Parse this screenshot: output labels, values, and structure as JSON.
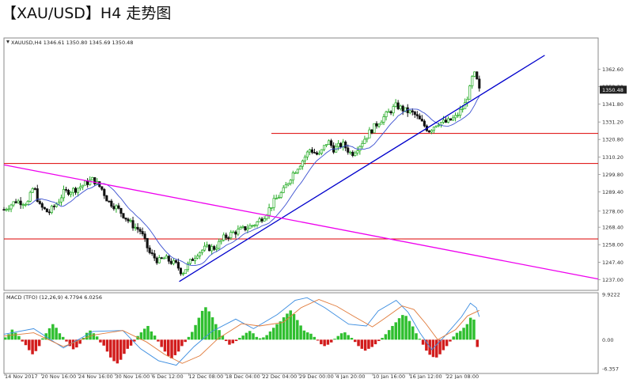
{
  "title": "【XAU/USD】H4 走势图",
  "chart_data": {
    "type": "candlestick",
    "main": {
      "header": "XAUUSD,H4  1346.61 1350.80 1345.69 1350.48",
      "last_price_label": "1350.48",
      "y_ticks": [
        "1362.60",
        "1352.30",
        "1341.80",
        "1331.20",
        "1320.80",
        "1310.20",
        "1299.80",
        "1289.40",
        "1278.00",
        "1268.40",
        "1258.00",
        "1247.40",
        "1237.00"
      ],
      "ylim": [
        1234,
        1370
      ],
      "horizontal_levels": [
        1324.4,
        1306.4,
        1261.4
      ],
      "trendlines": [
        {
          "color": "#0000cc",
          "from": [
            0.295,
            1236
          ],
          "to": [
            0.91,
            1371
          ]
        },
        {
          "color": "#ee00ee",
          "from": [
            0.0,
            1305.6
          ],
          "to": [
            1.0,
            1237.5
          ]
        }
      ],
      "close_path": [
        [
          0.0,
          1279
        ],
        [
          0.02,
          1284
        ],
        [
          0.04,
          1283
        ],
        [
          0.05,
          1293
        ],
        [
          0.06,
          1281
        ],
        [
          0.075,
          1277
        ],
        [
          0.09,
          1283
        ],
        [
          0.1,
          1289
        ],
        [
          0.12,
          1291
        ],
        [
          0.14,
          1295
        ],
        [
          0.15,
          1297
        ],
        [
          0.165,
          1291
        ],
        [
          0.175,
          1284
        ],
        [
          0.19,
          1280
        ],
        [
          0.2,
          1276
        ],
        [
          0.215,
          1270
        ],
        [
          0.23,
          1266
        ],
        [
          0.245,
          1253
        ],
        [
          0.26,
          1248
        ],
        [
          0.27,
          1250
        ],
        [
          0.28,
          1248
        ],
        [
          0.29,
          1246
        ],
        [
          0.3,
          1241
        ],
        [
          0.31,
          1246
        ],
        [
          0.325,
          1253
        ],
        [
          0.34,
          1256
        ],
        [
          0.355,
          1256
        ],
        [
          0.37,
          1262
        ],
        [
          0.385,
          1265
        ],
        [
          0.4,
          1267
        ],
        [
          0.415,
          1269
        ],
        [
          0.425,
          1271
        ],
        [
          0.44,
          1276
        ],
        [
          0.455,
          1284
        ],
        [
          0.47,
          1290
        ],
        [
          0.485,
          1300
        ],
        [
          0.5,
          1307
        ],
        [
          0.515,
          1315
        ],
        [
          0.53,
          1311
        ],
        [
          0.545,
          1320
        ],
        [
          0.555,
          1315
        ],
        [
          0.57,
          1318
        ],
        [
          0.585,
          1312
        ],
        [
          0.6,
          1318
        ],
        [
          0.615,
          1325
        ],
        [
          0.63,
          1331
        ],
        [
          0.645,
          1336
        ],
        [
          0.66,
          1341
        ],
        [
          0.675,
          1338
        ],
        [
          0.69,
          1336
        ],
        [
          0.7,
          1332
        ],
        [
          0.715,
          1326
        ],
        [
          0.73,
          1331
        ],
        [
          0.745,
          1331
        ],
        [
          0.76,
          1334
        ],
        [
          0.775,
          1341
        ],
        [
          0.785,
          1352
        ],
        [
          0.79,
          1361
        ],
        [
          0.795,
          1357
        ],
        [
          0.8,
          1350
        ]
      ]
    },
    "macd": {
      "label": "MACD (TFO) (12,26,9) 4.7794 6.0256",
      "y_ticks": [
        "9.9222",
        "0.00",
        "-6.357"
      ],
      "ylim": [
        -6.357,
        9.9222
      ],
      "histogram": [
        0.5,
        1.2,
        2.2,
        1.5,
        0.8,
        -0.4,
        -1.2,
        -2.3,
        -3.2,
        -2.5,
        -1.4,
        0.3,
        1.4,
        2.5,
        3.4,
        2.6,
        1.4,
        0.6,
        -0.4,
        -1.4,
        -2.1,
        -1.7,
        -0.9,
        0.4,
        1.5,
        2.0,
        1.4,
        0.7,
        -0.6,
        -1.3,
        -2.6,
        -3.9,
        -4.7,
        -5.2,
        -4.4,
        -3.1,
        -2.0,
        -1.3,
        -0.4,
        0.8,
        1.6,
        2.4,
        3.0,
        1.8,
        0.9,
        -0.4,
        -1.6,
        -2.6,
        -3.6,
        -4.1,
        -3.4,
        -2.6,
        -1.4,
        -0.5,
        0.6,
        1.7,
        3.2,
        4.8,
        6.3,
        7.1,
        6.2,
        4.9,
        3.4,
        2.1,
        0.9,
        -0.3,
        -1.1,
        -0.8,
        -0.3,
        0.4,
        0.9,
        1.5,
        1.9,
        1.4,
        0.6,
        0.3,
        0.5,
        1.0,
        1.8,
        2.6,
        3.4,
        4.0,
        4.9,
        5.7,
        6.4,
        5.6,
        4.3,
        3.1,
        2.0,
        1.6,
        1.3,
        0.6,
        -0.2,
        -1.0,
        -1.4,
        -1.1,
        -0.6,
        0.2,
        0.8,
        1.4,
        1.6,
        1.0,
        0.4,
        -0.5,
        -1.4,
        -2.0,
        -2.4,
        -2.0,
        -1.6,
        -1.0,
        -0.3,
        0.4,
        1.2,
        2.1,
        3.0,
        3.8,
        4.7,
        5.4,
        5.2,
        4.1,
        2.9,
        1.4,
        0.2,
        -1.1,
        -2.4,
        -3.3,
        -3.8,
        -3.9,
        -3.2,
        -2.3,
        -1.4,
        -0.4,
        0.7,
        1.5,
        1.9,
        2.6,
        3.4,
        4.8,
        4.4,
        -1.6
      ],
      "signal": [
        [
          0.0,
          0.8
        ],
        [
          0.05,
          1.5
        ],
        [
          0.1,
          -1.5
        ],
        [
          0.15,
          1.0
        ],
        [
          0.2,
          2.0
        ],
        [
          0.24,
          -0.5
        ],
        [
          0.27,
          -3.2
        ],
        [
          0.3,
          -5.2
        ],
        [
          0.33,
          -3.5
        ],
        [
          0.36,
          0.2
        ],
        [
          0.4,
          3.5
        ],
        [
          0.43,
          3.0
        ],
        [
          0.47,
          3.8
        ],
        [
          0.5,
          7.0
        ],
        [
          0.53,
          8.8
        ],
        [
          0.56,
          7.3
        ],
        [
          0.59,
          5.0
        ],
        [
          0.62,
          2.8
        ],
        [
          0.64,
          4.6
        ],
        [
          0.67,
          7.4
        ],
        [
          0.69,
          6.6
        ],
        [
          0.71,
          3.5
        ],
        [
          0.73,
          0.0
        ],
        [
          0.76,
          2.2
        ],
        [
          0.78,
          5.2
        ],
        [
          0.8,
          6.4
        ]
      ],
      "macd_line": [
        [
          0.0,
          1.2
        ],
        [
          0.05,
          2.4
        ],
        [
          0.1,
          -1.8
        ],
        [
          0.15,
          1.8
        ],
        [
          0.2,
          2.0
        ],
        [
          0.23,
          -2.0
        ],
        [
          0.26,
          -4.6
        ],
        [
          0.29,
          -5.6
        ],
        [
          0.32,
          -1.5
        ],
        [
          0.35,
          1.8
        ],
        [
          0.39,
          4.5
        ],
        [
          0.42,
          2.4
        ],
        [
          0.46,
          5.5
        ],
        [
          0.49,
          8.6
        ],
        [
          0.51,
          9.2
        ],
        [
          0.54,
          7.0
        ],
        [
          0.58,
          3.4
        ],
        [
          0.61,
          3.0
        ],
        [
          0.63,
          6.3
        ],
        [
          0.66,
          8.6
        ],
        [
          0.68,
          6.0
        ],
        [
          0.7,
          1.5
        ],
        [
          0.72,
          -2.2
        ],
        [
          0.74,
          0.5
        ],
        [
          0.77,
          5.0
        ],
        [
          0.785,
          8.0
        ],
        [
          0.795,
          7.0
        ],
        [
          0.8,
          5.0
        ]
      ]
    },
    "x_ticks": [
      "14 Nov 2017",
      "20 Nov 16:00",
      "24 Nov 16:00",
      "30 Nov 16:00",
      "6 Dec 12:00",
      "12 Dec 08:00",
      "18 Dec 04:00",
      "22 Dec 04:00",
      "29 Dec 00:00",
      "4 Jan 20:00",
      "10 Jan 16:00",
      "16 Jan 12:00",
      "22 Jan 08:00"
    ],
    "colors": {
      "up": "#22aa22",
      "down": "#111111",
      "macd_pos": "#2fbf2f",
      "macd_neg": "#d21c1c",
      "level": "#dd0000",
      "ma": "#3a4fd0",
      "grid": "#cfcfcf",
      "macd_line": "#3a8ce0",
      "signal_line": "#e07a3a"
    }
  }
}
